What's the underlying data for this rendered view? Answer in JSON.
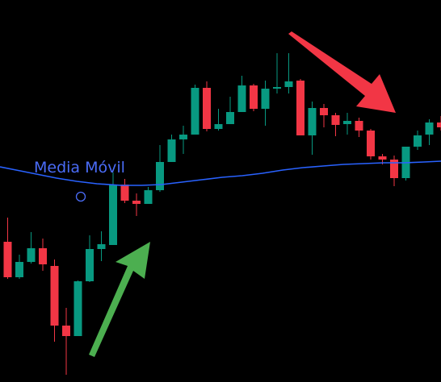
{
  "chart_data": {
    "type": "candlestick",
    "y_direction": "price",
    "ylim": [
      0,
      474
    ],
    "candles": [
      {
        "o": 174,
        "c": 130,
        "h": 204,
        "l": 128
      },
      {
        "o": 130,
        "c": 149,
        "h": 158,
        "l": 128
      },
      {
        "o": 149,
        "c": 166,
        "h": 186,
        "l": 147
      },
      {
        "o": 166,
        "c": 146,
        "h": 178,
        "l": 138
      },
      {
        "o": 144,
        "c": 70,
        "h": 152,
        "l": 50
      },
      {
        "o": 70,
        "c": 57,
        "h": 92,
        "l": 9
      },
      {
        "o": 57,
        "c": 125,
        "h": 126,
        "l": 57
      },
      {
        "o": 125,
        "c": 165,
        "h": 182,
        "l": 124
      },
      {
        "o": 165,
        "c": 171,
        "h": 187,
        "l": 150
      },
      {
        "o": 170,
        "c": 245,
        "h": 260,
        "l": 170
      },
      {
        "o": 245,
        "c": 225,
        "h": 252,
        "l": 222
      },
      {
        "o": 225,
        "c": 221,
        "h": 234,
        "l": 206
      },
      {
        "o": 221,
        "c": 238,
        "h": 242,
        "l": 221
      },
      {
        "o": 238,
        "c": 273,
        "h": 294,
        "l": 236
      },
      {
        "o": 273,
        "c": 301,
        "h": 307,
        "l": 273
      },
      {
        "o": 301,
        "c": 307,
        "h": 318,
        "l": 283
      },
      {
        "o": 307,
        "c": 365,
        "h": 369,
        "l": 307
      },
      {
        "o": 365,
        "c": 314,
        "h": 373,
        "l": 311
      },
      {
        "o": 314,
        "c": 320,
        "h": 339,
        "l": 312
      },
      {
        "o": 320,
        "c": 335,
        "h": 354,
        "l": 320
      },
      {
        "o": 335,
        "c": 368,
        "h": 380,
        "l": 335
      },
      {
        "o": 368,
        "c": 339,
        "h": 370,
        "l": 336
      },
      {
        "o": 339,
        "c": 364,
        "h": 374,
        "l": 318
      },
      {
        "o": 364,
        "c": 366,
        "h": 408,
        "l": 358
      },
      {
        "o": 366,
        "c": 373,
        "h": 408,
        "l": 358
      },
      {
        "o": 374,
        "c": 306,
        "h": 376,
        "l": 306
      },
      {
        "o": 306,
        "c": 340,
        "h": 348,
        "l": 282
      },
      {
        "o": 340,
        "c": 331,
        "h": 345,
        "l": 316
      },
      {
        "o": 331,
        "c": 319,
        "h": 334,
        "l": 305
      },
      {
        "o": 320,
        "c": 324,
        "h": 334,
        "l": 307
      },
      {
        "o": 324,
        "c": 312,
        "h": 328,
        "l": 304
      },
      {
        "o": 312,
        "c": 280,
        "h": 314,
        "l": 276
      },
      {
        "o": 280,
        "c": 276,
        "h": 283,
        "l": 270
      },
      {
        "o": 276,
        "c": 253,
        "h": 281,
        "l": 243
      },
      {
        "o": 253,
        "c": 292,
        "h": 292,
        "l": 250
      },
      {
        "o": 292,
        "c": 306,
        "h": 312,
        "l": 288
      },
      {
        "o": 307,
        "c": 322,
        "h": 326,
        "l": 294
      },
      {
        "o": 322,
        "c": 316,
        "h": 330,
        "l": 312
      }
    ],
    "moving_average": [
      [
        0,
        267
      ],
      [
        20,
        263
      ],
      [
        45,
        258
      ],
      [
        70,
        253
      ],
      [
        95,
        249
      ],
      [
        120,
        246
      ],
      [
        150,
        244
      ],
      [
        175,
        244
      ],
      [
        200,
        245
      ],
      [
        225,
        248
      ],
      [
        250,
        251
      ],
      [
        275,
        254
      ],
      [
        300,
        256
      ],
      [
        325,
        259
      ],
      [
        350,
        263
      ],
      [
        375,
        266
      ],
      [
        400,
        268
      ],
      [
        425,
        270
      ],
      [
        450,
        271
      ],
      [
        475,
        272
      ],
      [
        500,
        272
      ],
      [
        525,
        273
      ],
      [
        546,
        274
      ]
    ],
    "annotations": {
      "label": "Media Móvil",
      "label_color": "#4a6cf7",
      "green_arrow_color": "#4caf50",
      "red_arrow_color": "#f23645"
    },
    "colors": {
      "up": "#089981",
      "down": "#f23645",
      "ma": "#2962ff",
      "background": "#000000"
    }
  }
}
